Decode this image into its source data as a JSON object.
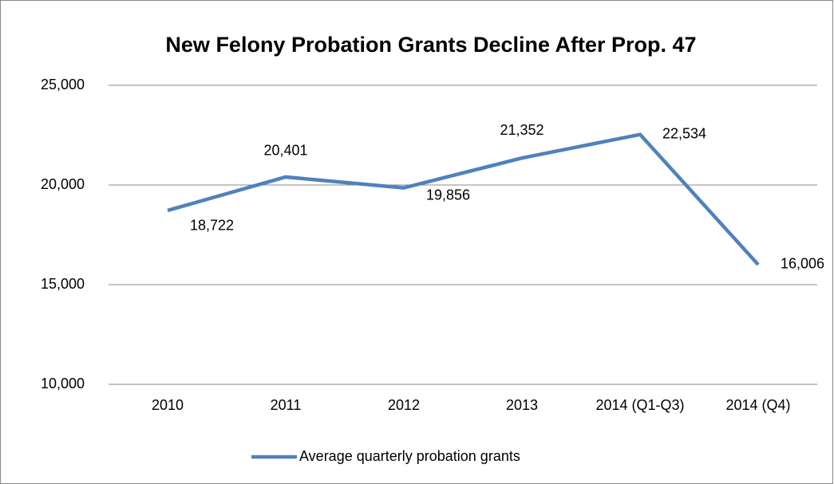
{
  "chart_data": {
    "type": "line",
    "title": "New Felony Probation Grants Decline After Prop. 47",
    "categories": [
      "2010",
      "2011",
      "2012",
      "2013",
      "2014 (Q1-Q3)",
      "2014 (Q4)"
    ],
    "series": [
      {
        "name": "Average quarterly probation grants",
        "color": "#4f81bd",
        "values": [
          18722,
          20401,
          19856,
          21352,
          22534,
          16006
        ],
        "value_labels": [
          "18,722",
          "20,401",
          "19,856",
          "21,352",
          "22,534",
          "16,006"
        ]
      }
    ],
    "ylim": [
      10000,
      25000
    ],
    "yticks": [
      {
        "value": 10000,
        "label": "10,000"
      },
      {
        "value": 15000,
        "label": "15,000"
      },
      {
        "value": 20000,
        "label": "20,000"
      },
      {
        "value": 25000,
        "label": "25,000"
      }
    ],
    "grid": true,
    "legend": "bottom"
  }
}
